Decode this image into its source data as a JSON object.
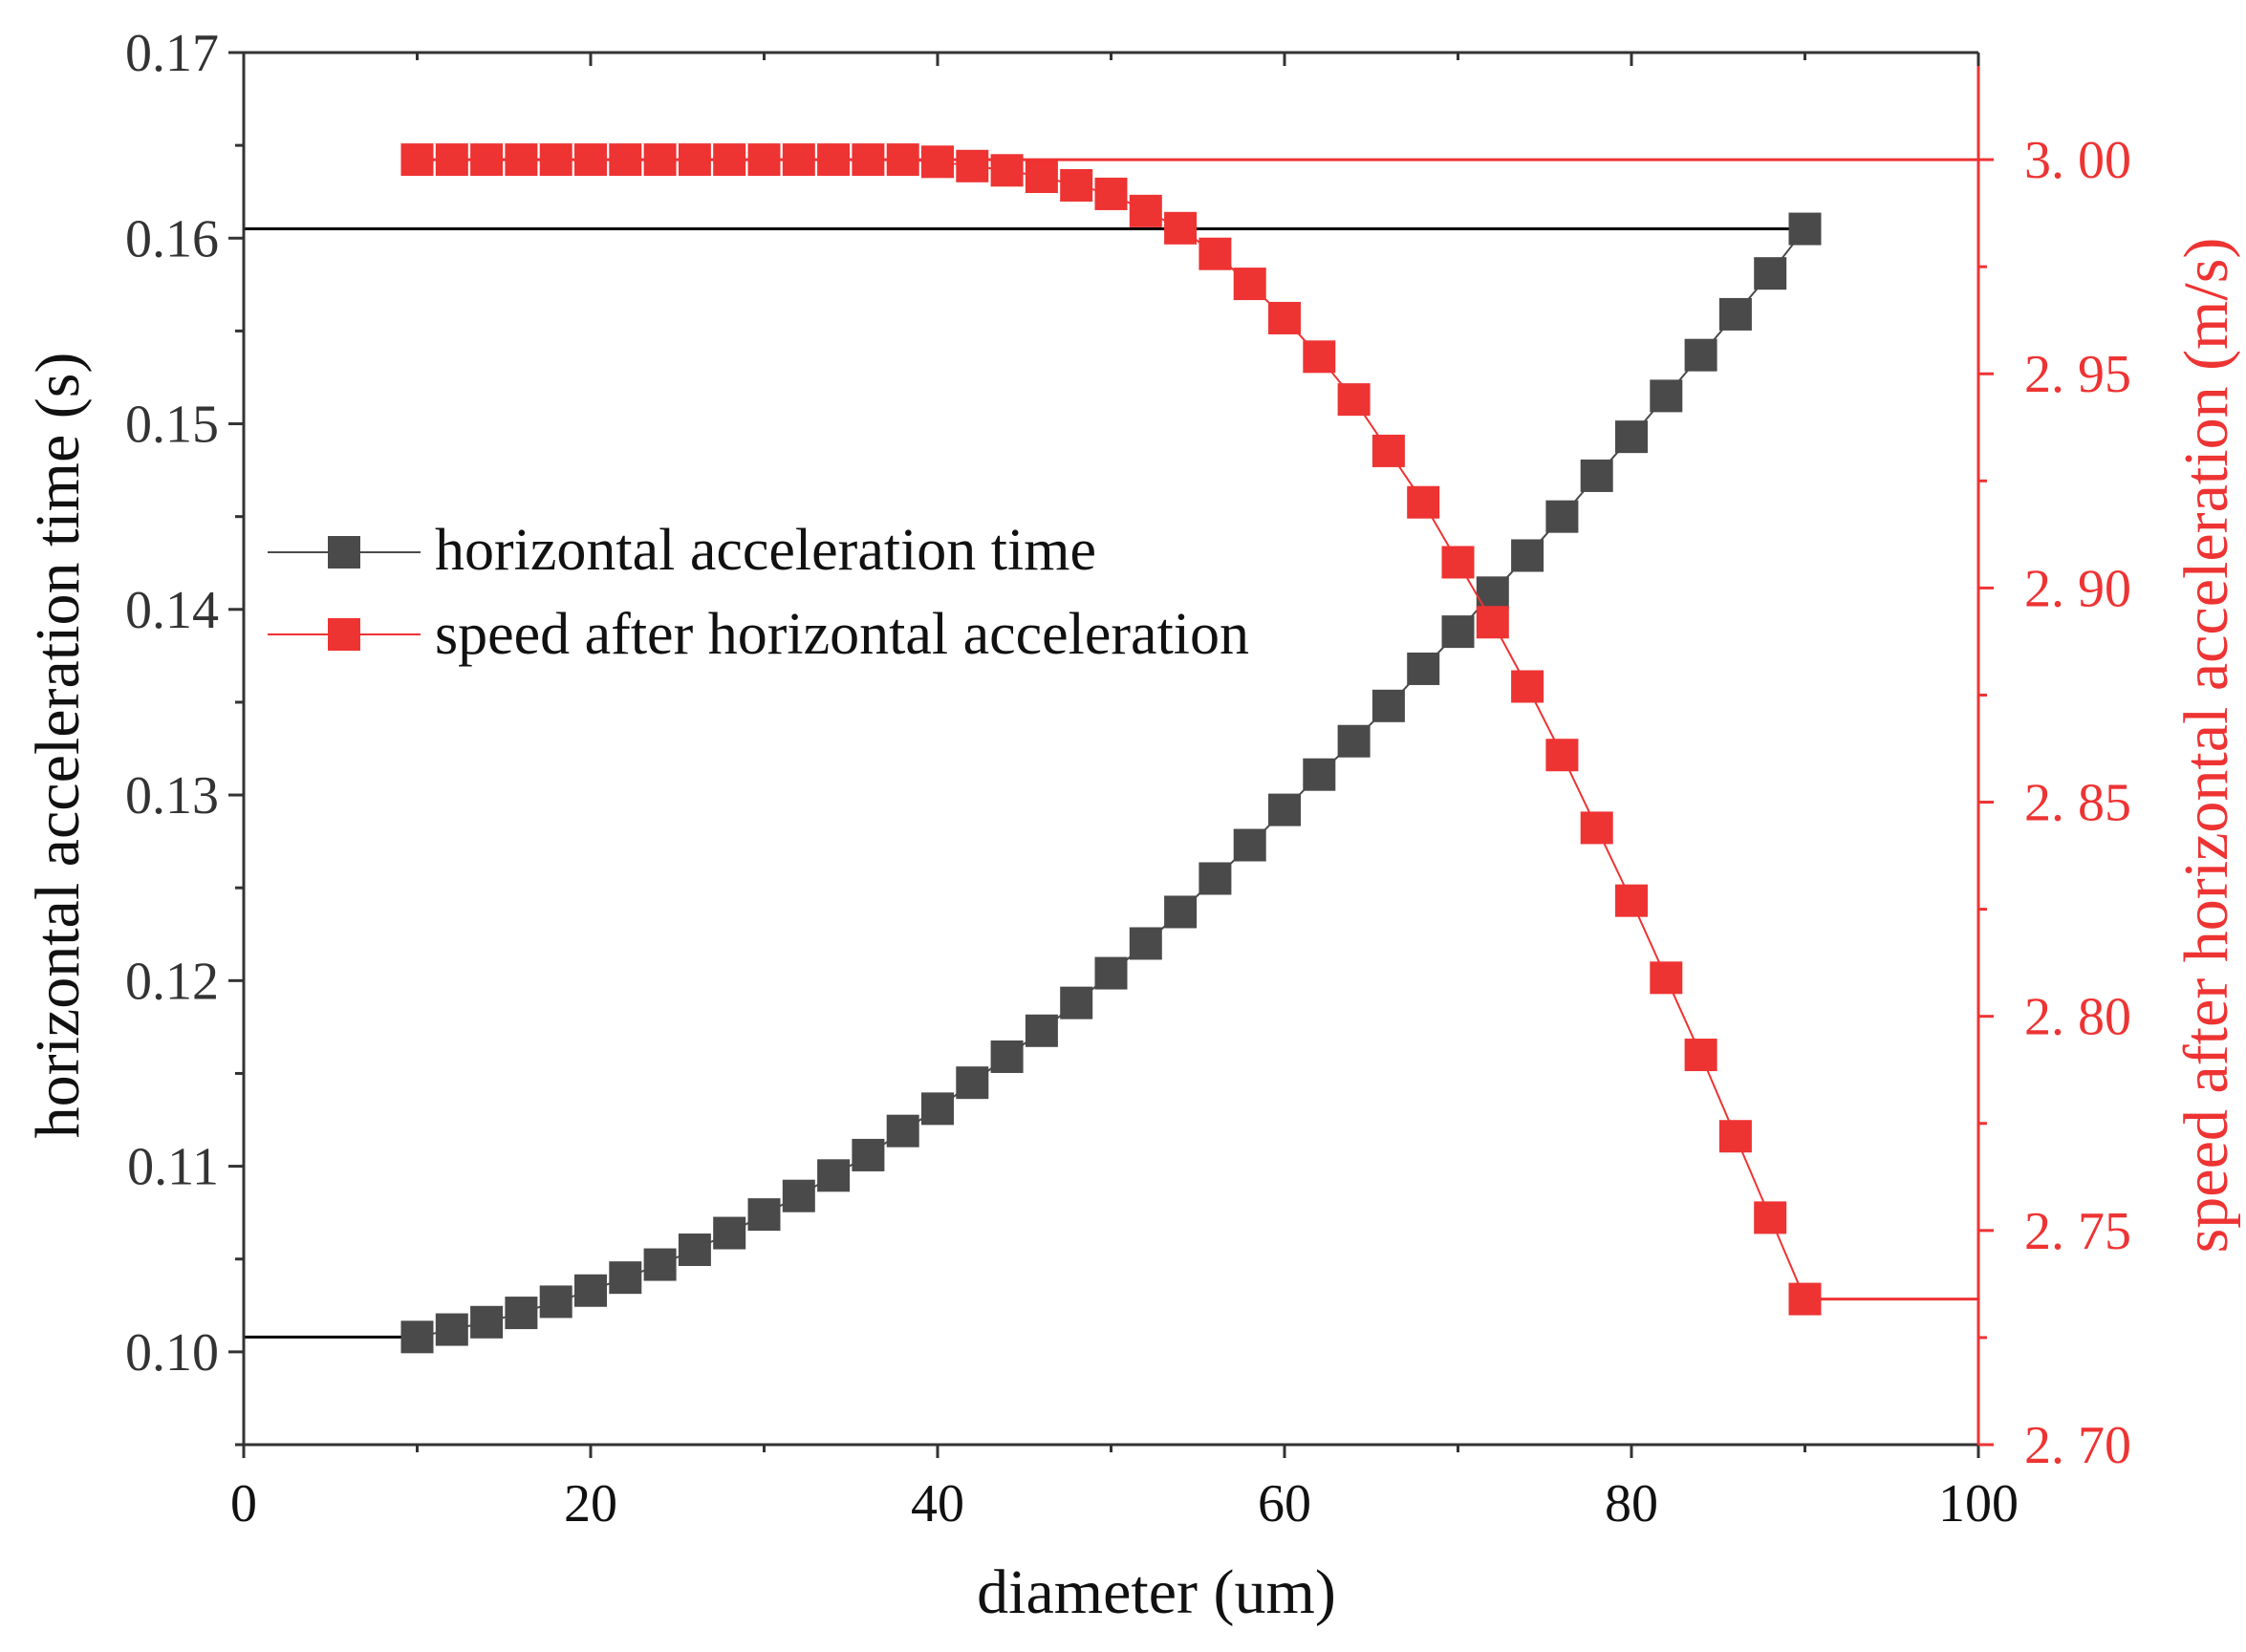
{
  "chart_data": {
    "type": "line",
    "title": "",
    "xlabel": "diameter (um)",
    "ylabel_left": "horizontal acceleration time (s)",
    "ylabel_right": "speed after horizontal acceleration (m/s)",
    "xlim": [
      0,
      100
    ],
    "ylim_left": [
      0.095,
      0.17
    ],
    "ylim_right": [
      2.7,
      3.025
    ],
    "x_ticks": [
      0,
      20,
      40,
      60,
      80,
      100
    ],
    "y_left_ticks": [
      0.1,
      0.11,
      0.12,
      0.13,
      0.14,
      0.15,
      0.16,
      0.17
    ],
    "y_right_ticks": [
      2.7,
      2.75,
      2.8,
      2.85,
      2.9,
      2.95,
      3.0
    ],
    "x_tick_labels": [
      "0",
      "20",
      "40",
      "60",
      "80",
      "100"
    ],
    "y_left_tick_labels": [
      "0.10",
      "0.11",
      "0.12",
      "0.13",
      "0.14",
      "0.15",
      "0.16",
      "0.17"
    ],
    "y_right_tick_labels": [
      "2. 70",
      "2. 75",
      "2. 80",
      "2. 85",
      "2. 90",
      "2. 95",
      "3. 00"
    ],
    "grid": false,
    "legend_position": "center-left",
    "x": [
      10,
      12,
      14,
      16,
      18,
      20,
      22,
      24,
      26,
      28,
      30,
      32,
      34,
      36,
      38,
      40,
      42,
      44,
      46,
      48,
      50,
      52,
      54,
      56,
      58,
      60,
      62,
      64,
      66,
      68,
      70,
      72,
      74,
      76,
      78,
      80,
      82,
      84,
      86,
      88,
      90
    ],
    "series": [
      {
        "name": "horizontal acceleration time",
        "axis": "left",
        "color": "#4a4a4a",
        "values": [
          0.1008,
          0.1012,
          0.1016,
          0.1021,
          0.1027,
          0.1033,
          0.104,
          0.1047,
          0.1055,
          0.1064,
          0.1074,
          0.1084,
          0.1095,
          0.1106,
          0.1119,
          0.1131,
          0.1145,
          0.1159,
          0.1173,
          0.1188,
          0.1204,
          0.122,
          0.1237,
          0.1255,
          0.1273,
          0.1292,
          0.1311,
          0.1329,
          0.1348,
          0.1368,
          0.1388,
          0.1409,
          0.1429,
          0.145,
          0.1472,
          0.1493,
          0.1515,
          0.1537,
          0.1559,
          0.1581,
          0.1605
        ]
      },
      {
        "name": "speed after horizontal acceleration",
        "axis": "right",
        "color": "#ee3333",
        "values": [
          3.0,
          3.0,
          3.0,
          3.0,
          3.0,
          3.0,
          3.0,
          3.0,
          3.0,
          3.0,
          3.0,
          3.0,
          3.0,
          3.0,
          3.0,
          2.9995,
          2.9985,
          2.9975,
          2.996,
          2.994,
          2.992,
          2.988,
          2.984,
          2.978,
          2.971,
          2.963,
          2.954,
          2.944,
          2.932,
          2.92,
          2.906,
          2.892,
          2.877,
          2.861,
          2.844,
          2.827,
          2.809,
          2.791,
          2.772,
          2.753,
          2.734
        ]
      }
    ],
    "reference_lines": [
      {
        "axis": "left",
        "value": 0.1008,
        "x_range": [
          0,
          10
        ],
        "color": "#000000"
      },
      {
        "axis": "left",
        "value": 0.1605,
        "x_range": [
          0,
          90
        ],
        "color": "#000000"
      },
      {
        "axis": "right",
        "value": 3.0,
        "x_range": [
          10,
          100
        ],
        "color": "#ee3333"
      },
      {
        "axis": "right",
        "value": 2.734,
        "x_range": [
          90,
          100
        ],
        "color": "#ee3333"
      }
    ],
    "axis_colors": {
      "left": "#333333",
      "right": "#ee3333",
      "bottom": "#333333"
    }
  }
}
